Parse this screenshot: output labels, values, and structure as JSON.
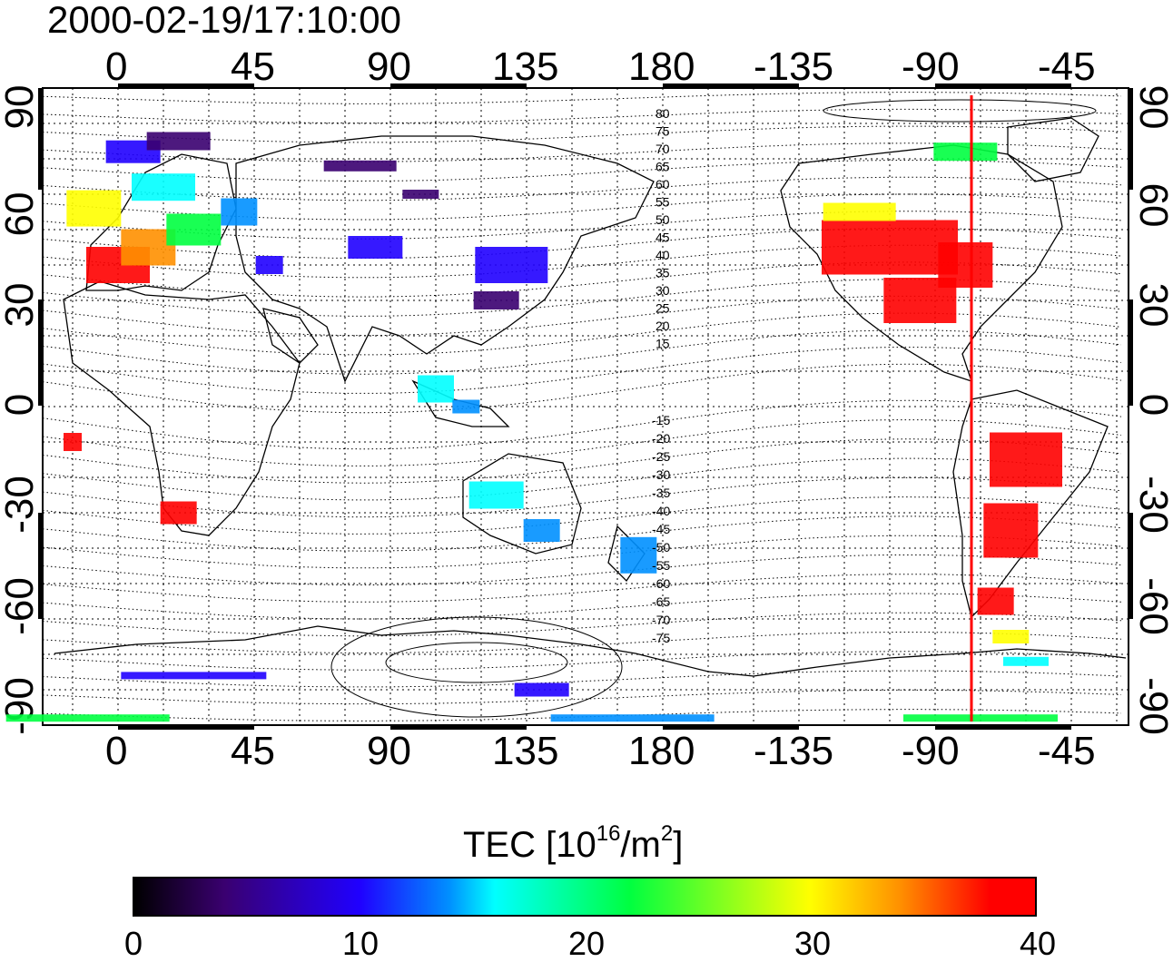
{
  "title": "2000-02-19/17:10:00",
  "map": {
    "lon_ticks": [
      "0",
      "45",
      "90",
      "135",
      "180",
      "-135",
      "-90",
      "-45"
    ],
    "lat_ticks": [
      "90",
      "60",
      "30",
      "0",
      "-30",
      "-60",
      "-90"
    ],
    "contour_labels_north": [
      "80",
      "75",
      "70",
      "65",
      "60",
      "55",
      "50",
      "45",
      "40",
      "35",
      "30",
      "25",
      "20",
      "15"
    ],
    "contour_labels_south": [
      "-15",
      "-20",
      "-25",
      "-30",
      "-35",
      "-40",
      "-45",
      "-50",
      "-55",
      "-60",
      "-65",
      "-70",
      "-75"
    ],
    "terminator_color": "#ff0000",
    "terminator_lon": -72
  },
  "colorbar": {
    "title_main": "TEC  [10",
    "title_exp1": "16",
    "title_mid": "/m",
    "title_exp2": "2",
    "title_end": "]",
    "min": 0,
    "max": 40,
    "labels": [
      "0",
      "10",
      "20",
      "30",
      "40"
    ],
    "colors": [
      "#000000",
      "#3a0070",
      "#2000ff",
      "#0090ff",
      "#00ffff",
      "#00ff40",
      "#ffff00",
      "#ff9000",
      "#ff0000"
    ]
  }
}
